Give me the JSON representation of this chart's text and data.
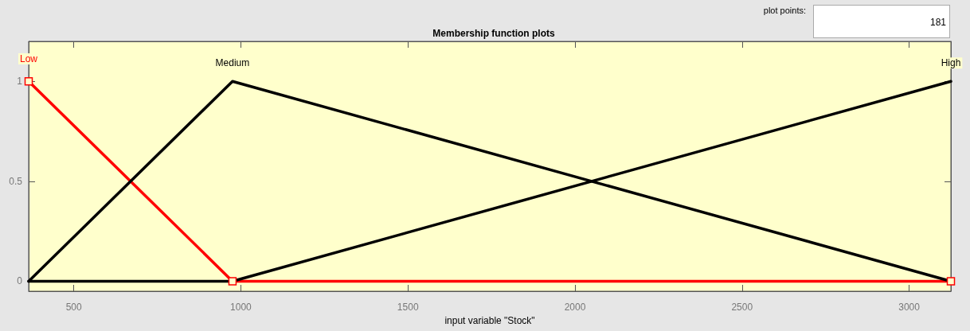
{
  "chart_data": {
    "type": "line",
    "title": "Membership function plots",
    "xlabel": "input variable \"Stock\"",
    "x": [
      365,
      975,
      3125
    ],
    "series": [
      {
        "name": "Low",
        "color": "#ff0000",
        "values": [
          1,
          0,
          0
        ],
        "marker": "square"
      },
      {
        "name": "Medium",
        "color": "#000000",
        "values": [
          0,
          1,
          0
        ],
        "marker": "none"
      },
      {
        "name": "High",
        "color": "#000000",
        "values": [
          0,
          0,
          1
        ],
        "marker": "none"
      }
    ],
    "xlim": [
      365,
      3125
    ],
    "xticks": [
      500,
      1000,
      1500,
      2000,
      2500,
      3000
    ],
    "ylim": [
      -0.05,
      1.2
    ],
    "yticks": [
      0,
      0.5,
      1
    ],
    "grid": false,
    "legend": false,
    "line_style": "solid",
    "annotations": [
      "plot points:",
      "181"
    ]
  }
}
